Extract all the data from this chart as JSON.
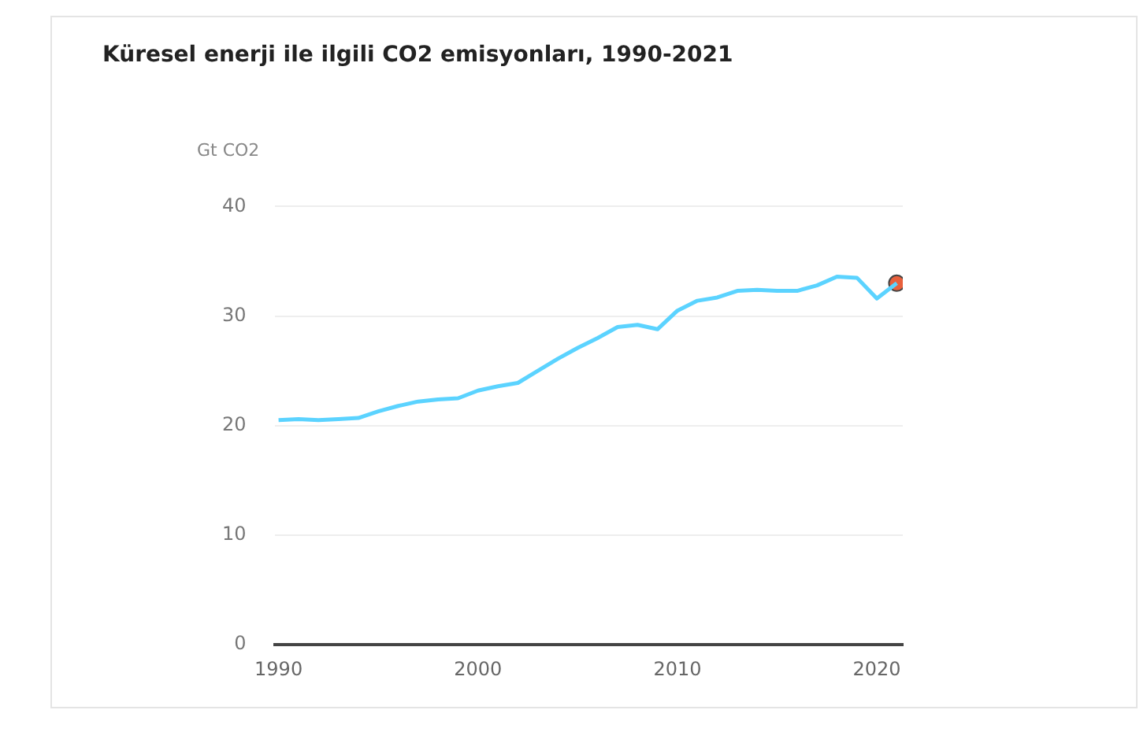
{
  "chart_data": {
    "type": "line",
    "title": "Küresel enerji ile ilgili CO2 emisyonları, 1990-2021",
    "ylabel": "Gt CO2",
    "x": [
      1990,
      1991,
      1992,
      1993,
      1994,
      1995,
      1996,
      1997,
      1998,
      1999,
      2000,
      2001,
      2002,
      2003,
      2004,
      2005,
      2006,
      2007,
      2008,
      2009,
      2010,
      2011,
      2012,
      2013,
      2014,
      2015,
      2016,
      2017,
      2018,
      2019,
      2020,
      2021
    ],
    "series": [
      {
        "color": "#5bd3ff",
        "marker": "none",
        "values": [
          20.5,
          20.6,
          20.5,
          20.6,
          20.7,
          21.3,
          21.8,
          22.2,
          22.4,
          22.5,
          23.2,
          23.6,
          23.9,
          25.0,
          26.1,
          27.1,
          28.0,
          29.0,
          29.2,
          28.8,
          30.5,
          31.4,
          31.7,
          32.3,
          32.4,
          32.3,
          32.3,
          32.8,
          33.6,
          33.5,
          31.6,
          33.0
        ]
      },
      {
        "type": "scatter",
        "color": "#e8603c",
        "marker": "circle",
        "x": [
          2021
        ],
        "values": [
          33.0
        ]
      }
    ],
    "xlim": [
      1989.8,
      2021.3
    ],
    "xticks": [
      1990,
      2000,
      2010,
      2020
    ],
    "ylim": [
      0,
      40
    ],
    "yticks": [
      0,
      10,
      20,
      30,
      40
    ],
    "grid": "y",
    "legend": false
  }
}
